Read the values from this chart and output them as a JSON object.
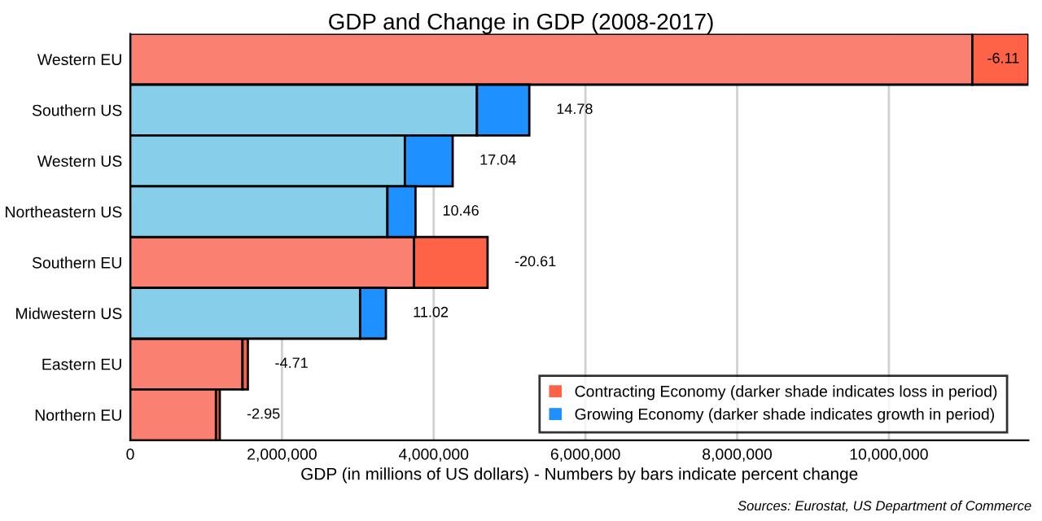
{
  "chart_data": {
    "type": "bar",
    "orientation": "horizontal",
    "stacked": true,
    "title": "GDP and Change in GDP (2008-2017)",
    "xlabel": "GDP (in millions of US dollars) - Numbers by bars indicate percent change",
    "categories": [
      "Western EU",
      "Southern US",
      "Western US",
      "Northeastern US",
      "Southern EU",
      "Midwestern US",
      "Eastern EU",
      "Northern EU"
    ],
    "series": [
      {
        "color": "#fa8072",
        "values": [
          11100000,
          null,
          null,
          null,
          3740000,
          null,
          1480000,
          1130000
        ]
      },
      {
        "name": "Contracting Economy (darker shade indicates loss in period)",
        "color": "#ff6347",
        "values": [
          740000,
          null,
          null,
          null,
          970000,
          null,
          70000,
          50000
        ]
      },
      {
        "color": "#87ceeb",
        "values": [
          null,
          4570000,
          3620000,
          3390000,
          null,
          3030000,
          null,
          null
        ]
      },
      {
        "name": "Growing Economy (darker shade indicates growth in period)",
        "color": "#1e90ff",
        "values": [
          null,
          690000,
          630000,
          370000,
          null,
          340000,
          null,
          null
        ]
      }
    ],
    "xlim": [
      0,
      11840000
    ],
    "xticks": [
      0,
      {
        "value": 2000000,
        "label": "2,000,000"
      },
      {
        "value": 4000000,
        "label": "4,000,000"
      },
      {
        "value": 6000000,
        "label": "6,000,000"
      },
      {
        "value": 8000000,
        "label": "8,000,000"
      },
      {
        "value": 10000000,
        "label": "10,000,000"
      }
    ],
    "grid": "x",
    "legend": "bottom right",
    "annotations": [
      {
        "text": "-6.11",
        "x": 11840000,
        "y": "Western EU"
      },
      {
        "text": "14.78",
        "x": 5260000,
        "y": "Southern US"
      },
      {
        "text": "17.04",
        "x": 4250000,
        "y": "Western US"
      },
      {
        "text": "10.46",
        "x": 3760000,
        "y": "Northeastern US"
      },
      {
        "text": "-20.61",
        "x": 4710000,
        "y": "Southern EU"
      },
      {
        "text": "11.02",
        "x": 3370000,
        "y": "Midwestern US"
      },
      {
        "text": "-4.71",
        "x": 1550000,
        "y": "Eastern EU"
      },
      {
        "text": "-2.95",
        "x": 1180000,
        "y": "Northern EU"
      },
      "Sources: Eurostat, US Department of Commerce"
    ]
  }
}
